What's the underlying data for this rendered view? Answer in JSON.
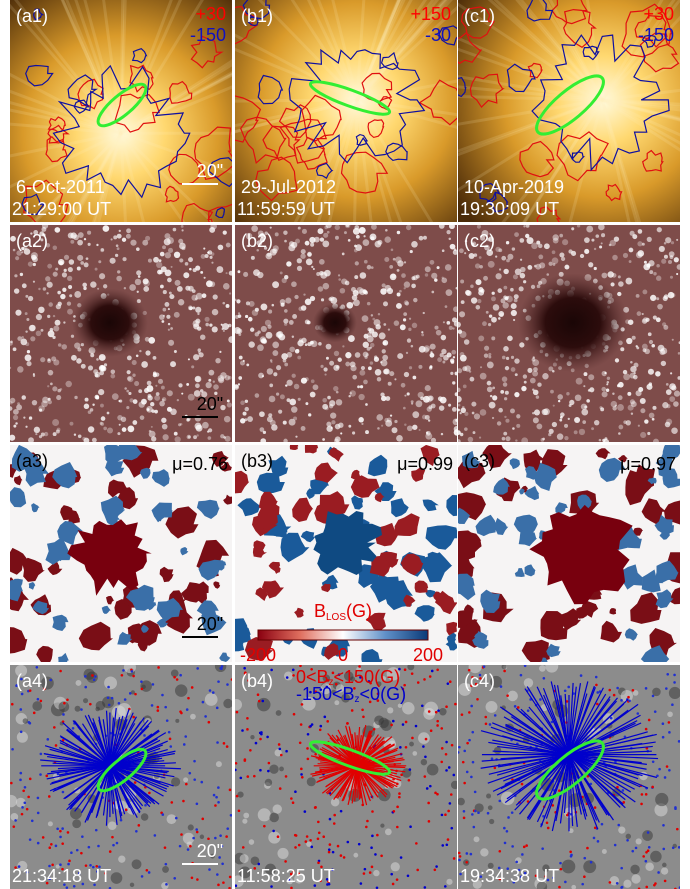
{
  "panels": [
    [
      {
        "label": "(a1)",
        "pos": "+30",
        "neg": "-150",
        "date": "6-Oct-2011",
        "time": "21:29:00 UT",
        "scale": "20\""
      },
      {
        "label": "(b1)",
        "pos": "+150",
        "neg": "-30",
        "date": "29-Jul-2012",
        "time": "11:59:59 UT"
      },
      {
        "label": "(c1)",
        "pos": "+30",
        "neg": "-150",
        "date": "10-Apr-2019",
        "time": "19:30:09 UT"
      }
    ],
    [
      {
        "label": "(a2)",
        "scale": "20\""
      },
      {
        "label": "(b2)"
      },
      {
        "label": "(c2)"
      }
    ],
    [
      {
        "label": "(a3)",
        "mu": "μ=0.76",
        "scale": "20\""
      },
      {
        "label": "(b3)",
        "mu": "μ=0.99"
      },
      {
        "label": "(c3)",
        "mu": "μ=0.97"
      }
    ],
    [
      {
        "label": "(a4)",
        "time": "21:34:18 UT",
        "scale": "20\""
      },
      {
        "label": "(b4)",
        "time": "11:58:25 UT"
      },
      {
        "label": "(c4)",
        "time": "19:34:38 UT"
      }
    ]
  ],
  "colorbar": {
    "title": {
      "symbol": "B",
      "subscript": "LOS",
      "unit": "(G)"
    },
    "ticks": [
      "-200",
      "0",
      "200"
    ]
  },
  "legend": [
    {
      "parts": [
        "0<B",
        "z",
        "<150(G)"
      ],
      "color": "#e00000"
    },
    {
      "parts": [
        "-150<B",
        "z",
        "<0(G)"
      ],
      "color": "#0000cc"
    }
  ]
}
